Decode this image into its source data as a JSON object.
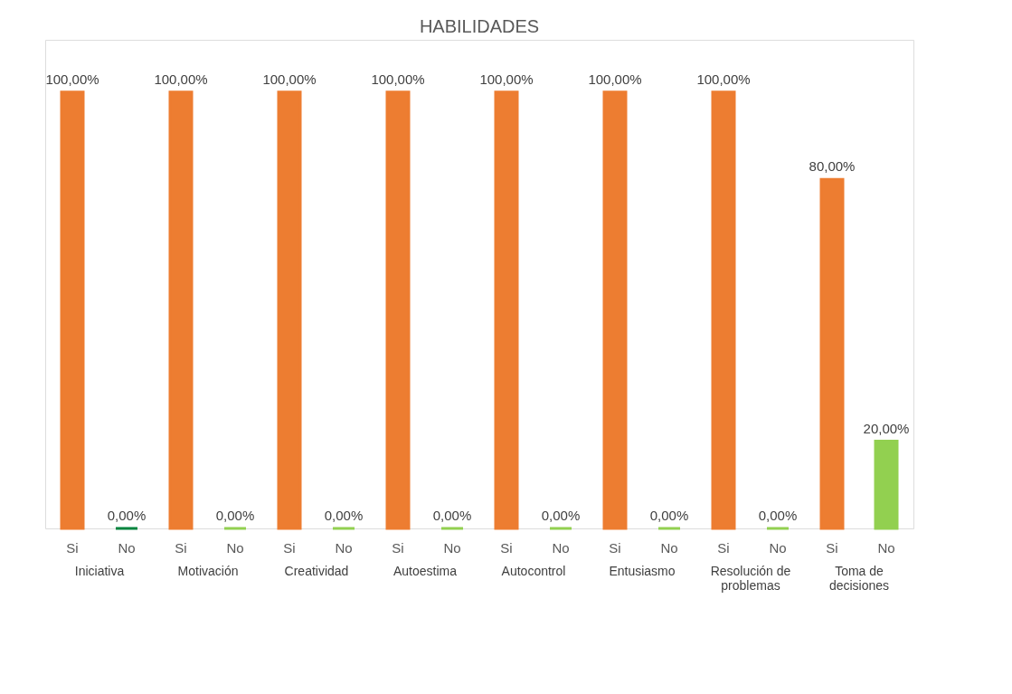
{
  "chart_data": {
    "type": "bar",
    "title": "HABILIDADES",
    "categories": [
      "Iniciativa",
      "Motivación",
      "Creatividad",
      "Autoestima",
      "Autocontrol",
      "Entusiasmo",
      "Resolución de problemas",
      "Toma de decisiones"
    ],
    "series": [
      {
        "name": "Si",
        "color": "#ed7d31",
        "values": [
          100,
          100,
          100,
          100,
          100,
          100,
          100,
          80
        ],
        "value_labels": [
          "100,00%",
          "100,00%",
          "100,00%",
          "100,00%",
          "100,00%",
          "100,00%",
          "100,00%",
          "80,00%"
        ]
      },
      {
        "name": "No",
        "colors": [
          "#00843d",
          "#92d050",
          "#92d050",
          "#92d050",
          "#92d050",
          "#92d050",
          "#92d050",
          "#92d050"
        ],
        "values": [
          0,
          0,
          0,
          0,
          0,
          0,
          0,
          20
        ],
        "value_labels": [
          "0,00%",
          "0,00%",
          "0,00%",
          "0,00%",
          "0,00%",
          "0,00%",
          "0,00%",
          "20,00%"
        ]
      }
    ]
  }
}
